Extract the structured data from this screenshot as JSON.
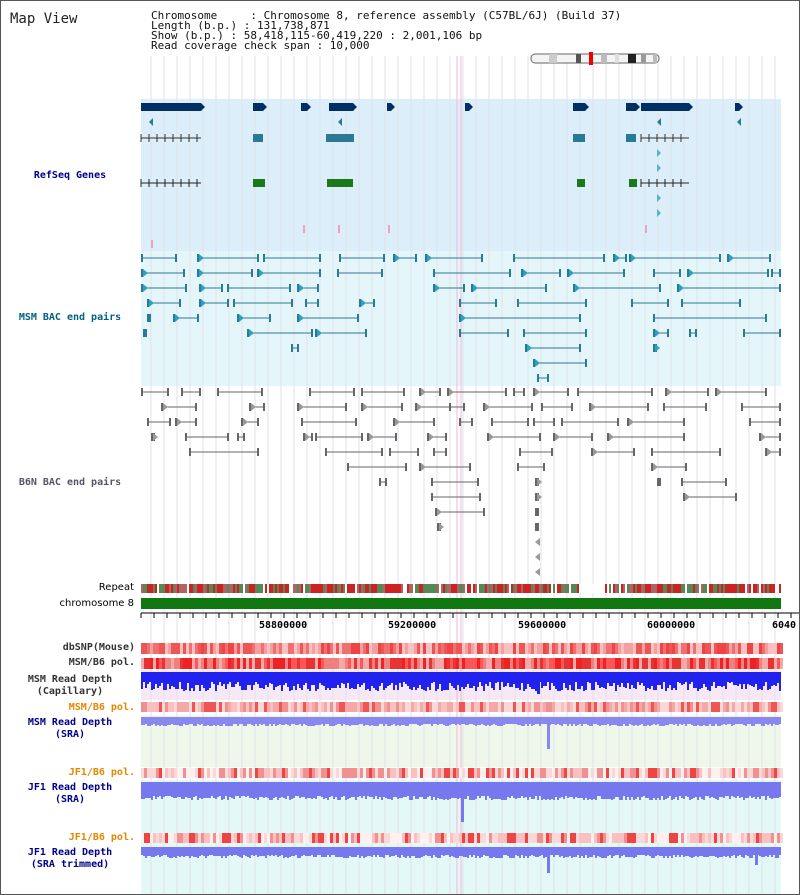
{
  "header": {
    "title": "Map View",
    "chromosome_line": "Chromosome     : Chromosome 8, reference assembly (C57BL/6J) (Build 37)",
    "length_line": "Length (b.p.) : 131,738,871",
    "show_line": "Show (b.p.) : 58,418,115-60,419,220 : 2,001,106 bp",
    "coverage_line": "Read coverage check span : 10,000"
  },
  "tracks": {
    "refseq": "RefSeq Genes",
    "msm_bac": "MSM BAC end pairs",
    "b6n_bac": "B6N BAC end pairs",
    "repeat": "Repeat",
    "chromosome": "chromosome 8",
    "dbsnp": "dbSNP(Mouse)",
    "msm_b6_pol": "MSM/B6 pol.",
    "msm_depth_cap_1": "MSM Read Depth",
    "msm_depth_cap_2": "(Capillary)",
    "msm_b6_pol2": "MSM/B6 pol.",
    "msm_depth_sra_1": "MSM Read Depth",
    "msm_depth_sra_2": "(SRA)",
    "jf1_b6_pol": "JF1/B6 pol.",
    "jf1_depth_sra_1": "JF1 Read Depth",
    "jf1_depth_sra_2": "(SRA)",
    "jf1_b6_pol2": "JF1/B6 pol.",
    "jf1_depth_trim_1": "JF1 Read Depth",
    "jf1_depth_trim_2": "(SRA trimmed)"
  },
  "ruler": {
    "ticks": [
      "58800000",
      "59200000",
      "59600000",
      "60000000",
      "6040"
    ]
  },
  "colors": {
    "refseq_bg": "#dbeefa",
    "msm_bg": "#e4f6fa",
    "navy": "#002f66",
    "teal": "#2b7a95",
    "green": "#1a7a1a",
    "gray": "#666666",
    "msm_label": "#006080",
    "b6n_label": "#555566",
    "blue_label": "#00008b",
    "orange_label": "#e08800",
    "pol_red": "#ee4444",
    "depth_blue": "#2020ee",
    "depth_light": "#8080ee"
  }
}
